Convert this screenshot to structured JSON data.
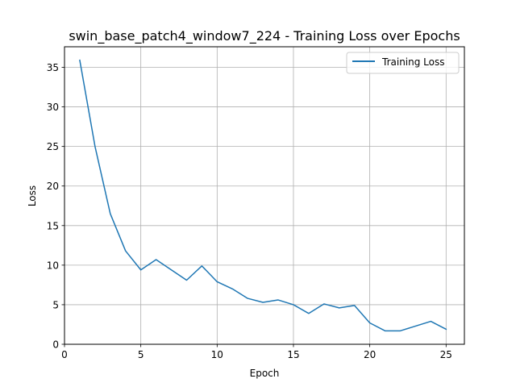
{
  "chart_data": {
    "type": "line",
    "title": "swin_base_patch4_window7_224 - Training Loss over Epochs",
    "xlabel": "Epoch",
    "ylabel": "Loss",
    "xlim": [
      0,
      26.2
    ],
    "ylim": [
      0,
      37.6
    ],
    "xticks": [
      0,
      5,
      10,
      15,
      20,
      25
    ],
    "yticks": [
      0,
      5,
      10,
      15,
      20,
      25,
      30,
      35
    ],
    "grid": true,
    "legend_position": "upper right",
    "series": [
      {
        "name": "Training Loss",
        "color": "#1f77b4",
        "x": [
          1,
          2,
          3,
          4,
          5,
          6,
          7,
          8,
          9,
          10,
          11,
          12,
          13,
          14,
          15,
          16,
          17,
          18,
          19,
          20,
          21,
          22,
          23,
          24,
          25
        ],
        "y": [
          35.9,
          25.0,
          16.5,
          11.8,
          9.4,
          10.7,
          9.4,
          8.1,
          9.9,
          7.9,
          7.0,
          5.8,
          5.3,
          5.6,
          5.0,
          3.9,
          5.1,
          4.6,
          4.9,
          2.7,
          1.7,
          1.7,
          2.3,
          2.9,
          1.9
        ]
      }
    ]
  }
}
